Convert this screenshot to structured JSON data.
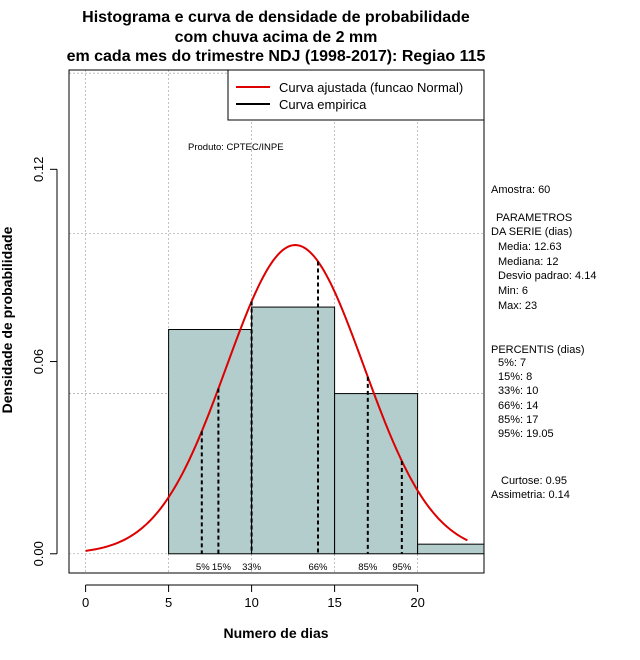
{
  "chart_data": {
    "type": "histogram",
    "title_lines": [
      "Histograma e curva de densidade de probabilidade",
      "com chuva acima de 2 mm",
      "em cada mes do trimestre NDJ (1998-2017): Regiao 115"
    ],
    "xlabel": "Numero de dias",
    "ylabel": "Densidade de probabilidade",
    "xlim": [
      -1,
      24
    ],
    "ylim": [
      -0.006,
      0.151
    ],
    "x_ticks": [
      0,
      5,
      10,
      15,
      20
    ],
    "y_ticks": [
      0.0,
      0.06,
      0.12
    ],
    "y_tick_labels": [
      "0.00",
      "0.06",
      "0.12"
    ],
    "grid": true,
    "grid_x": [
      0,
      5,
      10,
      15,
      20
    ],
    "grid_y": [
      0.0,
      0.05,
      0.1,
      0.15
    ],
    "bins": [
      {
        "start": 5,
        "end": 10,
        "density": 0.07
      },
      {
        "start": 10,
        "end": 15,
        "density": 0.077
      },
      {
        "start": 15,
        "end": 20,
        "density": 0.05
      },
      {
        "start": 20,
        "end": 24,
        "density": 0.003
      }
    ],
    "normal_fit": {
      "mean": 12.63,
      "sd": 4.14,
      "x_range": [
        0,
        23
      ]
    },
    "percentile_markers": [
      {
        "x": 7,
        "label": "5%"
      },
      {
        "x": 8,
        "label": "15%"
      },
      {
        "x": 10,
        "label": "33%"
      },
      {
        "x": 14,
        "label": "66%"
      },
      {
        "x": 17,
        "label": "85%"
      },
      {
        "x": 19.05,
        "label": "95%"
      }
    ],
    "legend": [
      {
        "label": "Curva ajustada (funcao Normal)",
        "color": "#dd0000"
      },
      {
        "label": "Curva empirica",
        "color": "#000000"
      }
    ],
    "annotation": "Produto: CPTEC/INPE",
    "colors": {
      "bar_fill": "#b3cccc",
      "curve": "#dd0000",
      "grid": "#b4b4b4"
    }
  },
  "side_panel": {
    "sample": "Amostra: 60",
    "params_header_1": "PARAMETROS",
    "params_header_2": "DA SERIE (dias)",
    "params": [
      "Media: 12.63",
      "Mediana: 12",
      "Desvio padrao: 4.14",
      "Min: 6",
      "Max: 23"
    ],
    "pct_header": "PERCENTIS (dias)",
    "pcts": [
      "5%: 7",
      "15%: 8",
      "33%: 10",
      "66%: 14",
      "85%: 17",
      "95%: 19.05"
    ],
    "kurtosis": "Curtose: 0.95",
    "skewness": "Assimetria: 0.14"
  }
}
